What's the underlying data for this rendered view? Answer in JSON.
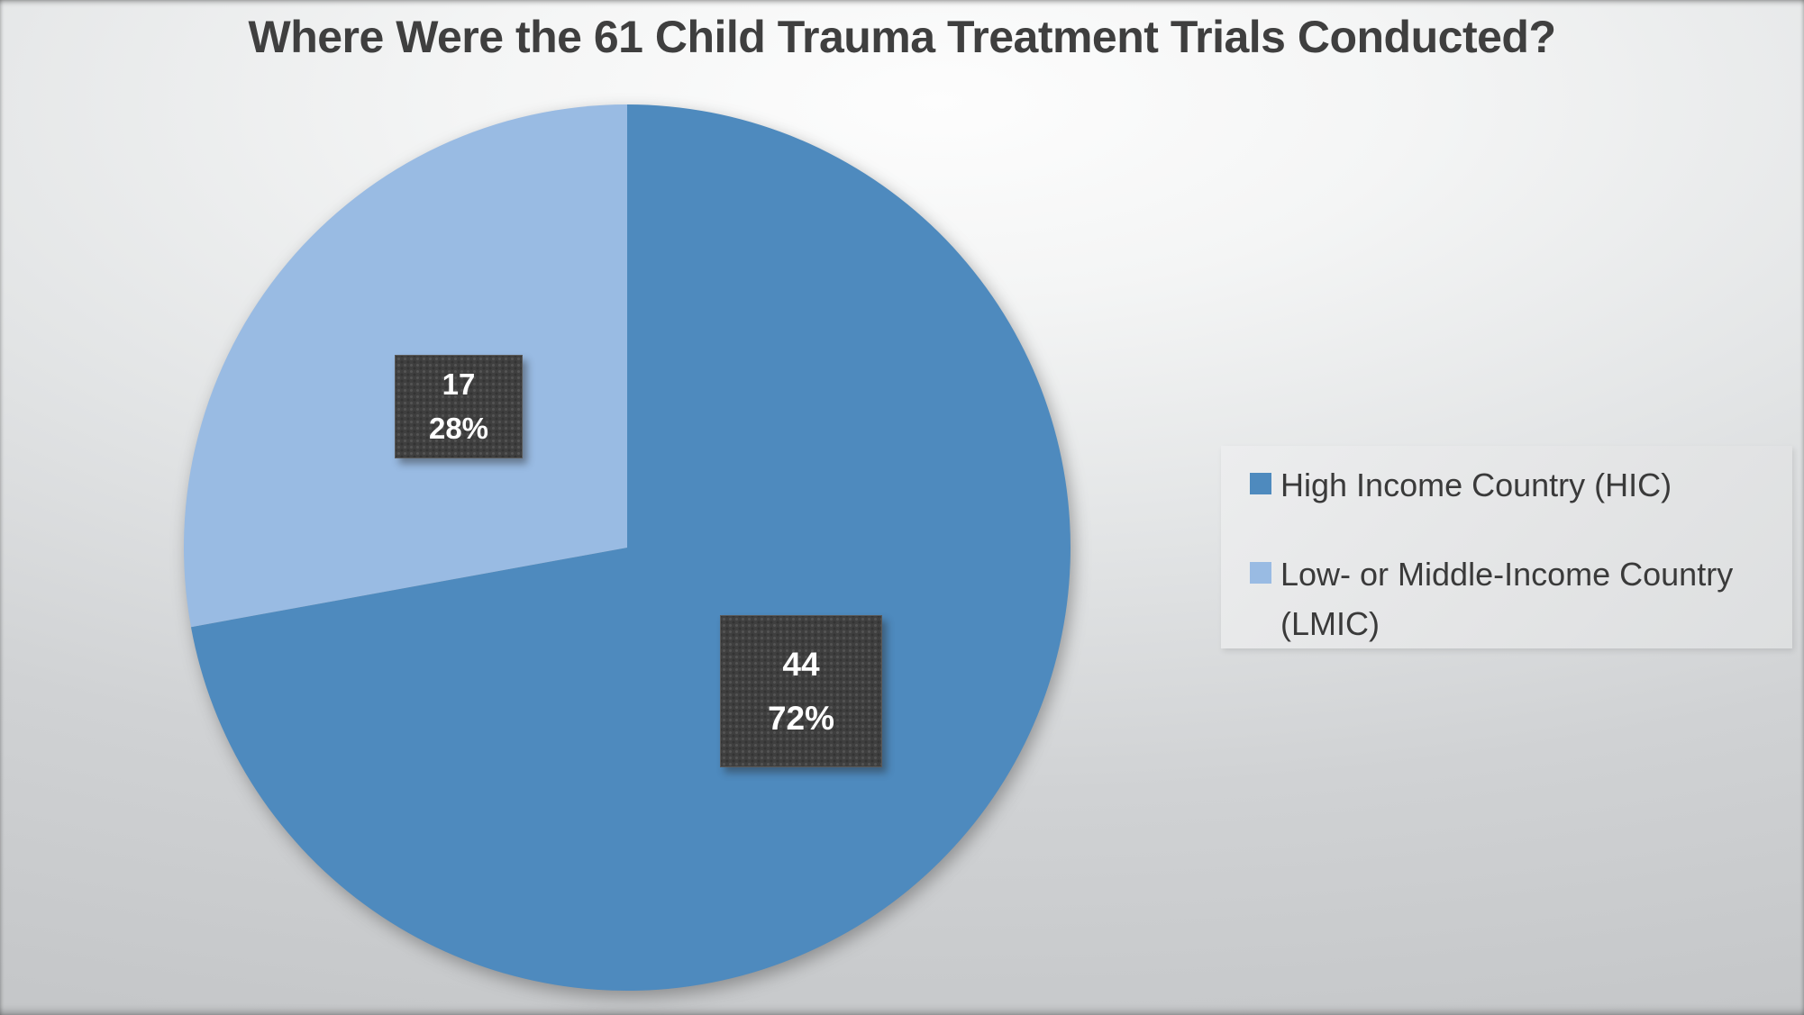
{
  "chart_data": {
    "type": "pie",
    "title": "Where Were the 61 Child Trauma Treatment Trials Conducted?",
    "total": 61,
    "slices": [
      {
        "label": "High Income Country (HIC)",
        "value": 44,
        "pct": "72%",
        "color": "#4e8abe"
      },
      {
        "label": "Low- or Middle-Income Country (LMIC)",
        "value": 17,
        "pct": "28%",
        "color": "#99bbe3"
      }
    ],
    "start_angle_deg": 0,
    "direction": "clockwise",
    "legend_position": "right",
    "data_labels": [
      {
        "value": "44",
        "pct": "72%"
      },
      {
        "value": "17",
        "pct": "28%"
      }
    ]
  },
  "colors": {
    "title_text": "#3f3f3f",
    "legend_text": "#3a3a3a",
    "legend_background": "#e6e7e8",
    "data_label_background": "#3f3f3f",
    "data_label_text": "#ffffff",
    "slide_background_center": "#fdfdfd",
    "slide_background_edge": "#c5c7c9"
  }
}
